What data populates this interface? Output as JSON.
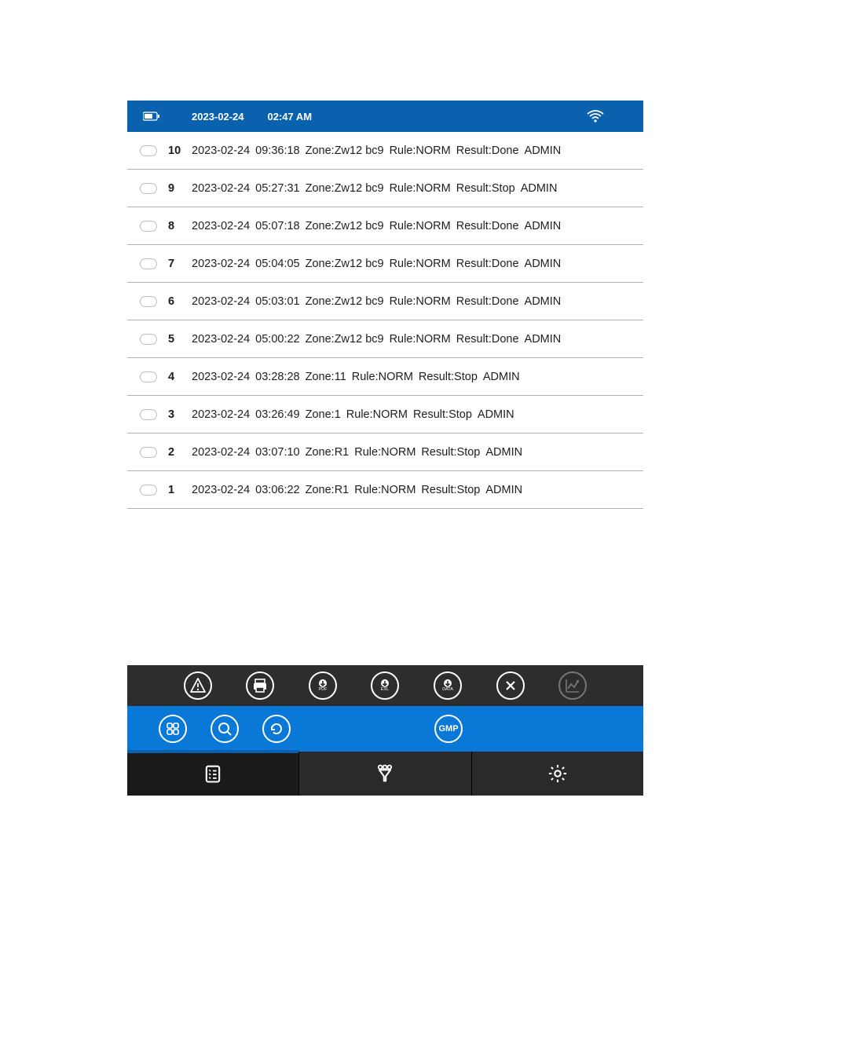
{
  "statusbar": {
    "date": "2023-02-24",
    "time": "02:47 AM"
  },
  "colors": {
    "header_bg": "#0a62ae",
    "blue_bar": "#0a78d6",
    "dark_bar": "#2d2d2d",
    "nav_bar": "#2a2a2a",
    "row_border": "#b0b0b0",
    "text": "#202020"
  },
  "labels": {
    "zone_prefix": "Zone:",
    "rule_prefix": "Rule:",
    "result_prefix": "Result:"
  },
  "logs": [
    {
      "idx": "10",
      "date": "2023-02-24",
      "time": "09:36:18",
      "zone": "Zw12 bc9",
      "rule": "NORM",
      "result": "Done",
      "user": "ADMIN"
    },
    {
      "idx": "9",
      "date": "2023-02-24",
      "time": "05:27:31",
      "zone": "Zw12 bc9",
      "rule": "NORM",
      "result": "Stop",
      "user": "ADMIN"
    },
    {
      "idx": "8",
      "date": "2023-02-24",
      "time": "05:07:18",
      "zone": "Zw12 bc9",
      "rule": "NORM",
      "result": "Done",
      "user": "ADMIN"
    },
    {
      "idx": "7",
      "date": "2023-02-24",
      "time": "05:04:05",
      "zone": "Zw12 bc9",
      "rule": "NORM",
      "result": "Done",
      "user": "ADMIN"
    },
    {
      "idx": "6",
      "date": "2023-02-24",
      "time": "05:03:01",
      "zone": "Zw12 bc9",
      "rule": "NORM",
      "result": "Done",
      "user": "ADMIN"
    },
    {
      "idx": "5",
      "date": "2023-02-24",
      "time": "05:00:22",
      "zone": "Zw12 bc9",
      "rule": "NORM",
      "result": "Done",
      "user": "ADMIN"
    },
    {
      "idx": "4",
      "date": "2023-02-24",
      "time": "03:28:28",
      "zone": "11",
      "rule": "NORM",
      "result": "Stop",
      "user": "ADMIN"
    },
    {
      "idx": "3",
      "date": "2023-02-24",
      "time": "03:26:49",
      "zone": "1",
      "rule": "NORM",
      "result": "Stop",
      "user": "ADMIN"
    },
    {
      "idx": "2",
      "date": "2023-02-24",
      "time": "03:07:10",
      "zone": "R1",
      "rule": "NORM",
      "result": "Stop",
      "user": "ADMIN"
    },
    {
      "idx": "1",
      "date": "2023-02-24",
      "time": "03:06:22",
      "zone": "R1",
      "rule": "NORM",
      "result": "Stop",
      "user": "ADMIN"
    }
  ],
  "toolbar_dark": [
    {
      "name": "alert-icon",
      "label": ""
    },
    {
      "name": "print-icon",
      "label": ""
    },
    {
      "name": "pdf-download-icon",
      "label": "PDF"
    },
    {
      "name": "exl-download-icon",
      "label": "EXL"
    },
    {
      "name": "data-download-icon",
      "label": "DATA"
    },
    {
      "name": "close-icon",
      "label": ""
    },
    {
      "name": "chart-icon",
      "label": "",
      "dim": true
    }
  ],
  "toolbar_blue": [
    {
      "name": "grid-icon"
    },
    {
      "name": "search-icon"
    },
    {
      "name": "refresh-icon"
    }
  ],
  "gmp_label": "GMP",
  "nav": [
    {
      "name": "list-icon"
    },
    {
      "name": "filter-icon"
    },
    {
      "name": "settings-icon"
    }
  ]
}
